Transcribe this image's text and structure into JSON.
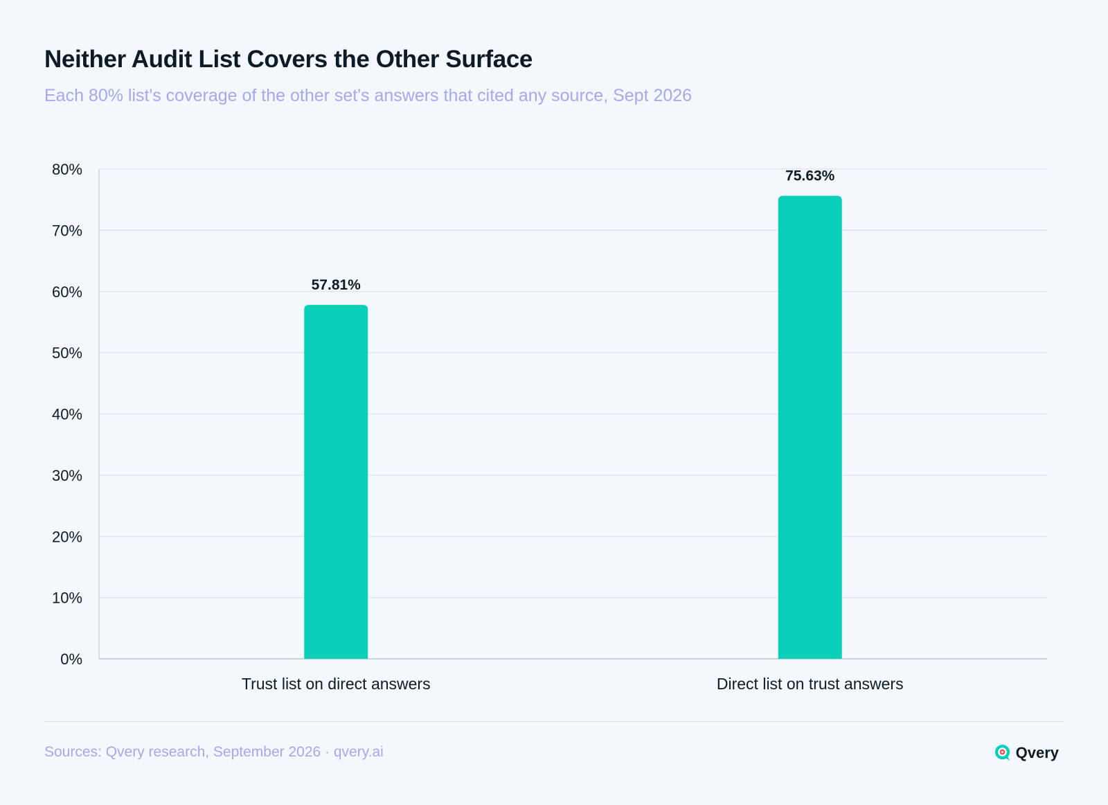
{
  "title": "Neither Audit List Covers the Other Surface",
  "subtitle": "Each 80% list's coverage of the other set's answers that cited any source, Sept 2026",
  "footer": {
    "source": "Sources: Qvery research, September 2026 · qvery.ai",
    "brand": "Qvery",
    "brand_icon": "qvery-logo-icon"
  },
  "colors": {
    "bar": "#0acfb9",
    "grid": "#dde2ea",
    "axis": "#c9cfd9",
    "text": "#0d1b26",
    "muted": "#a5a8ea"
  },
  "chart_data": {
    "type": "bar",
    "title": "Neither Audit List Covers the Other Surface",
    "subtitle": "Each 80% list's coverage of the other set's answers that cited any source, Sept 2026",
    "categories": [
      "Trust list on direct answers",
      "Direct list on trust answers"
    ],
    "values": [
      57.81,
      75.63
    ],
    "data_labels": [
      "57.81%",
      "75.63%"
    ],
    "ylim": [
      0,
      80
    ],
    "yticks": [
      0,
      10,
      20,
      30,
      40,
      50,
      60,
      70,
      80
    ],
    "ytick_labels": [
      "0%",
      "10%",
      "20%",
      "30%",
      "40%",
      "50%",
      "60%",
      "70%",
      "80%"
    ],
    "xlabel": "",
    "ylabel": "",
    "grid": true,
    "legend": "none"
  }
}
